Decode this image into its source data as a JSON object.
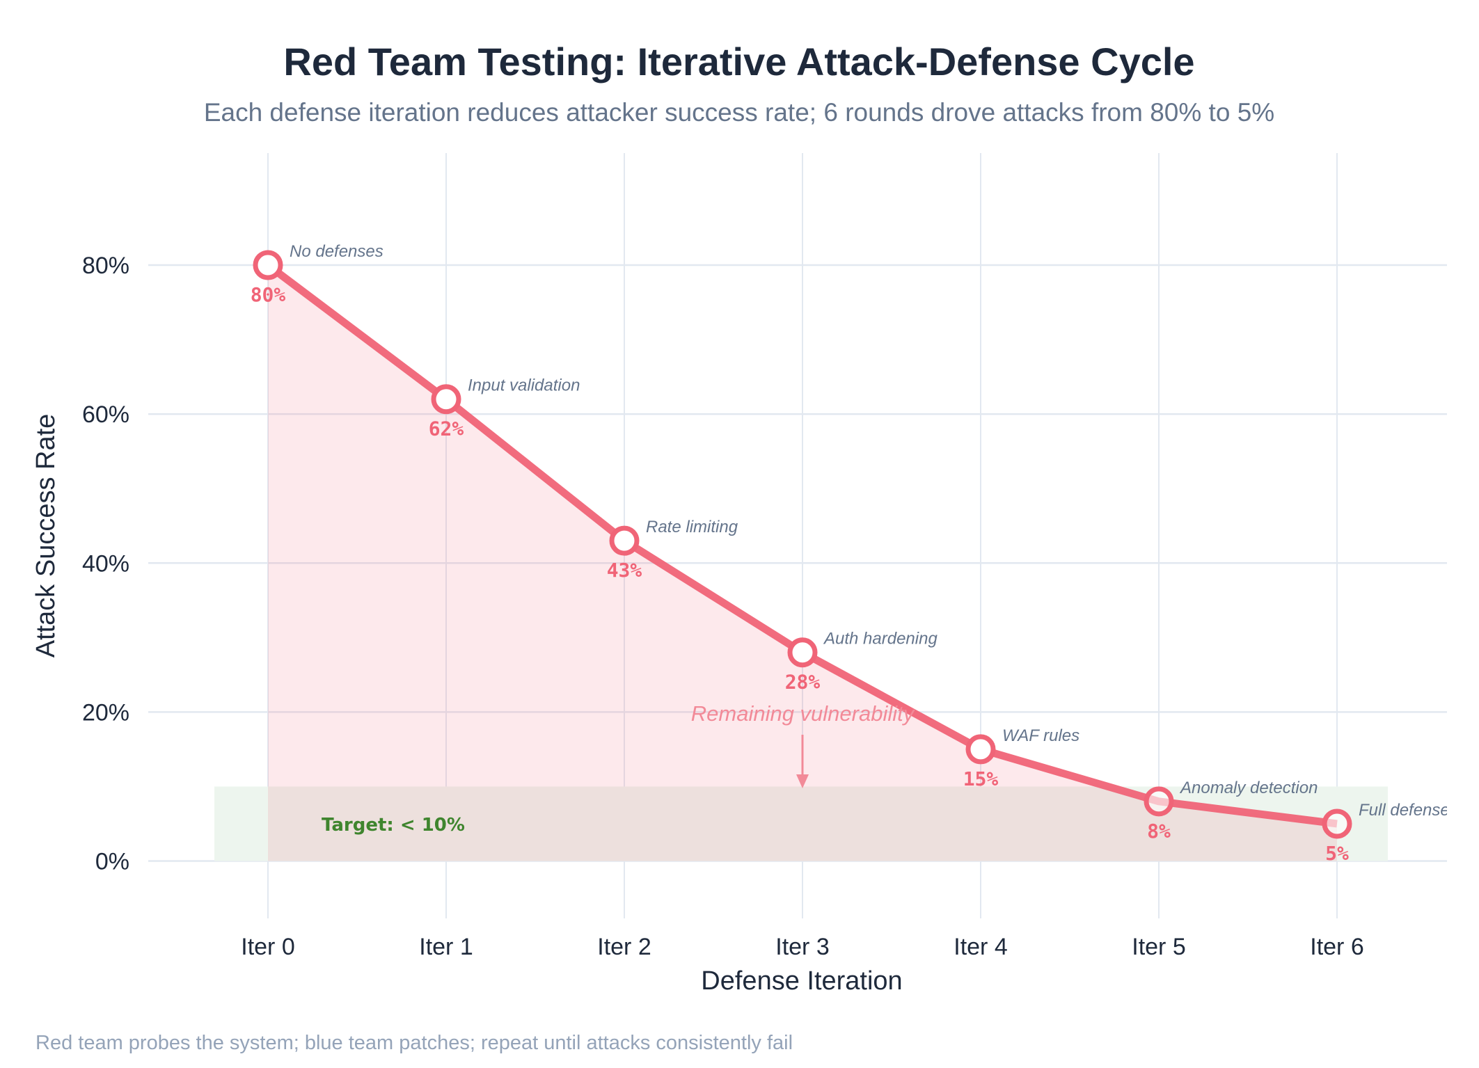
{
  "chart_data": {
    "type": "line",
    "title": "Red Team Testing: Iterative Attack-Defense Cycle",
    "subtitle": "Each defense iteration reduces attacker success rate; 6 rounds drove attacks from 80% to 5%",
    "xlabel": "Defense Iteration",
    "ylabel": "Attack Success Rate",
    "categories": [
      "Iter 0",
      "Iter 1",
      "Iter 2",
      "Iter 3",
      "Iter 4",
      "Iter 5",
      "Iter 6"
    ],
    "values": [
      80,
      62,
      43,
      28,
      15,
      8,
      5
    ],
    "data_labels": [
      "80%",
      "62%",
      "43%",
      "28%",
      "15%",
      "8%",
      "5%"
    ],
    "point_annotations": [
      "No defenses",
      "Input validation",
      "Rate limiting",
      "Auth hardening",
      "WAF rules",
      "Anomaly detection",
      "Full defense"
    ],
    "yticks": [
      0,
      20,
      40,
      60,
      80
    ],
    "ytick_labels": [
      "0%",
      "20%",
      "40%",
      "60%",
      "80%"
    ],
    "ylim": [
      -8,
      95
    ],
    "grid": true,
    "area_fill": true,
    "target_band": {
      "from": 0,
      "to": 10,
      "label": "Target: < 10%",
      "color": "#228b22"
    },
    "arrow_annotation": {
      "text": "Remaining vulnerability",
      "x": "Iter 3",
      "from_y": 17,
      "to_y": 10
    },
    "footnote": "Red team probes the system; blue team patches; repeat until attacks consistently fail",
    "colors": {
      "line": "#f06477",
      "fill": "#fbe5e9",
      "target": "#edf5ee",
      "grid": "#e2e8f0"
    }
  }
}
